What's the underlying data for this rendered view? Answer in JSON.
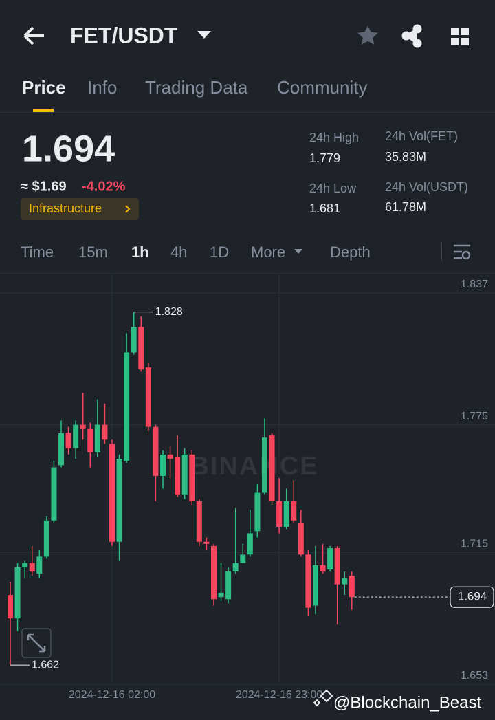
{
  "header": {
    "title": "FET/USDT"
  },
  "tabs": [
    "Price",
    "Info",
    "Trading Data",
    "Community"
  ],
  "price": {
    "last": "1.694",
    "fiat": "≈ $1.69",
    "change": "-4.02%",
    "tag": "Infrastructure"
  },
  "stats": [
    {
      "label": "24h High",
      "value": "1.779"
    },
    {
      "label": "24h Vol(FET)",
      "value": "35.83M"
    },
    {
      "label": "24h Low",
      "value": "1.681"
    },
    {
      "label": "24h Vol(USDT)",
      "value": "61.78M"
    }
  ],
  "timeframes": [
    "Time",
    "15m",
    "1h",
    "4h",
    "1D",
    "More",
    "Depth"
  ],
  "chart_data": {
    "type": "candlestick",
    "watermark": "BINANCE",
    "categories": [
      null,
      null,
      null,
      null,
      null,
      null,
      null,
      null,
      null,
      null,
      null,
      null,
      null,
      null,
      "2024-12-16 02:00",
      null,
      null,
      null,
      null,
      null,
      null,
      null,
      null,
      null,
      null,
      null,
      null,
      null,
      null,
      null,
      null,
      null,
      null,
      null,
      null,
      null,
      null,
      "2024-12-16 23:00",
      null,
      null,
      null,
      null,
      null,
      null,
      null,
      null,
      null,
      null
    ],
    "open": [
      1.695,
      1.684,
      1.708,
      1.71,
      1.705,
      1.713,
      1.73,
      1.756,
      1.771,
      1.764,
      1.775,
      1.773,
      1.762,
      1.775,
      1.766,
      1.72,
      1.758,
      1.809,
      1.821,
      1.802,
      1.774,
      1.751,
      1.761,
      1.76,
      1.742,
      1.761,
      1.739,
      1.72,
      1.718,
      1.694,
      1.693,
      1.706,
      1.71,
      1.714,
      1.725,
      1.743,
      1.77,
      1.739,
      1.727,
      1.739,
      1.729,
      1.714,
      1.69,
      1.709,
      1.707,
      1.717,
      1.7,
      1.704
    ],
    "high": [
      1.701,
      1.71,
      1.711,
      1.718,
      1.716,
      1.732,
      1.758,
      1.777,
      1.774,
      1.777,
      1.79,
      1.776,
      1.787,
      1.785,
      1.768,
      1.761,
      1.818,
      1.828,
      1.826,
      1.804,
      1.775,
      1.763,
      1.765,
      1.77,
      1.764,
      1.763,
      1.74,
      1.722,
      1.719,
      1.71,
      1.708,
      1.736,
      1.719,
      1.735,
      1.747,
      1.778,
      1.771,
      1.75,
      1.745,
      1.749,
      1.735,
      1.716,
      1.718,
      1.719,
      1.718,
      1.718,
      1.706,
      1.706
    ],
    "low": [
      1.662,
      1.678,
      1.703,
      1.704,
      1.703,
      1.712,
      1.729,
      1.755,
      1.761,
      1.759,
      1.768,
      1.755,
      1.76,
      1.766,
      1.718,
      1.711,
      1.757,
      1.808,
      1.8,
      1.772,
      1.739,
      1.745,
      1.75,
      1.741,
      1.74,
      1.737,
      1.718,
      1.716,
      1.69,
      1.692,
      1.691,
      1.705,
      1.71,
      1.713,
      1.722,
      1.742,
      1.737,
      1.724,
      1.726,
      1.729,
      1.713,
      1.685,
      1.686,
      1.705,
      1.706,
      1.681,
      1.695,
      1.688
    ],
    "close": [
      1.684,
      1.708,
      1.71,
      1.706,
      1.713,
      1.73,
      1.755,
      1.771,
      1.764,
      1.775,
      1.773,
      1.762,
      1.775,
      1.768,
      1.72,
      1.759,
      1.809,
      1.821,
      1.801,
      1.774,
      1.751,
      1.761,
      1.759,
      1.742,
      1.761,
      1.739,
      1.72,
      1.719,
      1.693,
      1.696,
      1.706,
      1.71,
      1.714,
      1.724,
      1.743,
      1.769,
      1.739,
      1.727,
      1.739,
      1.73,
      1.714,
      1.689,
      1.709,
      1.706,
      1.717,
      1.7,
      1.703,
      1.694
    ],
    "up_color": "#2ebd85",
    "down_color": "#f6465d",
    "ylim": [
      1.653,
      1.846
    ],
    "yticks": [
      1.653,
      1.715,
      1.775,
      1.837
    ],
    "annotations": [
      1.828,
      1.662
    ],
    "last_price": 1.694
  },
  "footer": {
    "credit": "@Blockchain_Beast"
  }
}
